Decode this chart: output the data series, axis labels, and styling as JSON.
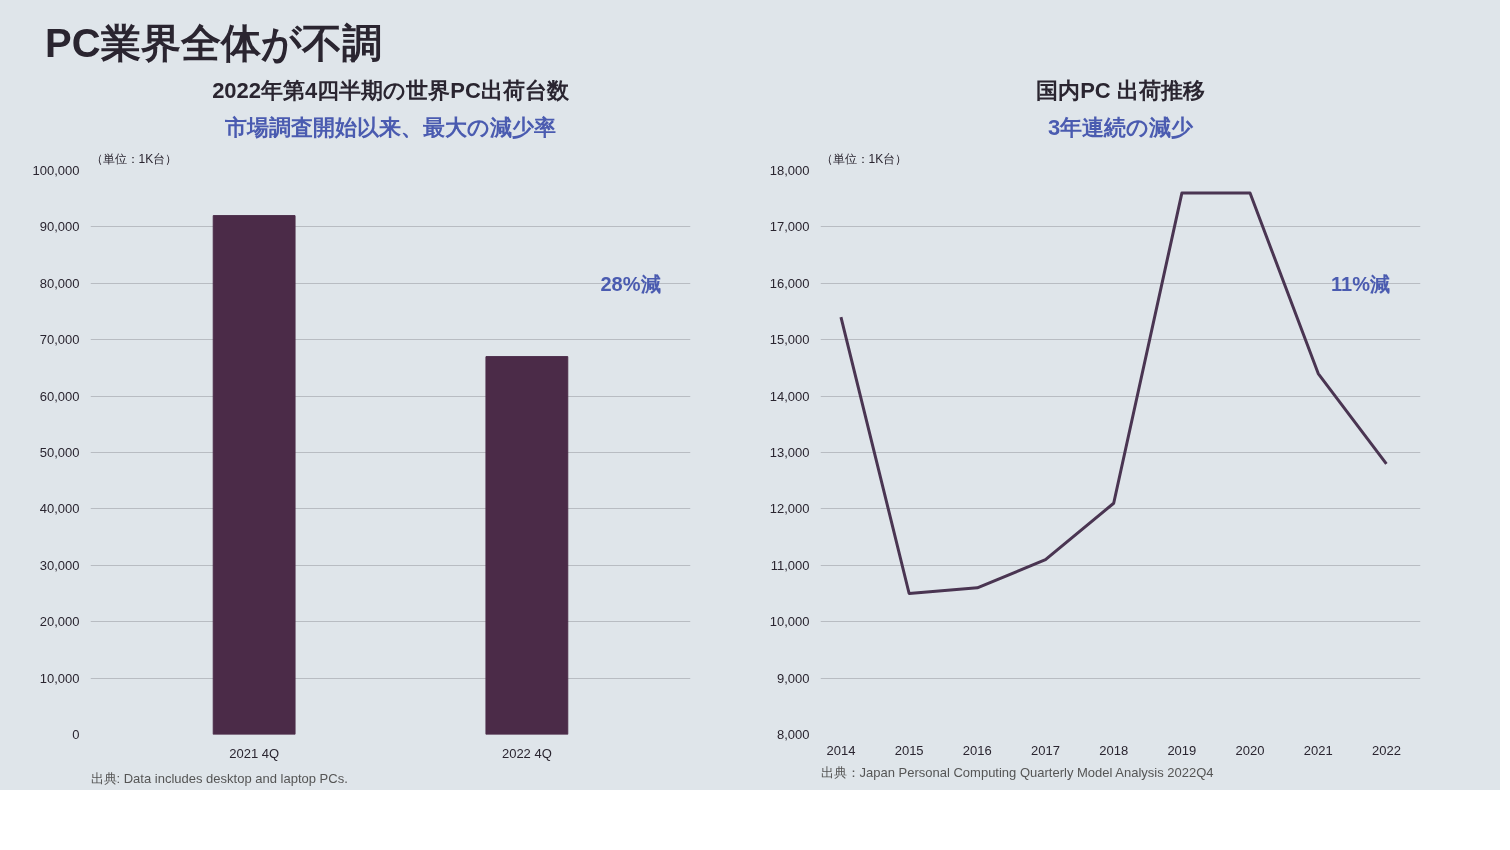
{
  "chart_data": [
    {
      "type": "other",
      "title": "PC業界全体が不調"
    },
    {
      "type": "bar",
      "title": "2022年第4四半期の世界PC出荷台数",
      "subtitle": "市場調査開始以来、最大の減少率",
      "ylabel": "（単位：1K台）",
      "categories": [
        "2021 4Q",
        "2022 4Q"
      ],
      "values": [
        92000,
        67000
      ],
      "color": "#4b2b48",
      "ylim": [
        0,
        100000
      ],
      "yticks": [
        {
          "value": 0,
          "label": "0"
        },
        {
          "value": 10000,
          "label": "10,000"
        },
        {
          "value": 20000,
          "label": "20,000"
        },
        {
          "value": 30000,
          "label": "30,000"
        },
        {
          "value": 40000,
          "label": "40,000"
        },
        {
          "value": 50000,
          "label": "50,000"
        },
        {
          "value": 60000,
          "label": "60,000"
        },
        {
          "value": 70000,
          "label": "70,000"
        },
        {
          "value": 80000,
          "label": "80,000"
        },
        {
          "value": 90000,
          "label": "90,000"
        },
        {
          "value": 100000,
          "label": "100,000"
        }
      ],
      "grid": "y",
      "annotations": [
        "28%減",
        "出典: Data includes desktop and laptop PCs."
      ]
    },
    {
      "type": "line",
      "title": "国内PC 出荷推移",
      "subtitle": "3年連続の減少",
      "ylabel": "（単位：1K台）",
      "x": [
        2014,
        2015,
        2016,
        2017,
        2018,
        2019,
        2020,
        2021,
        2022
      ],
      "series": [
        {
          "color": "#4a3552",
          "values": [
            15400,
            10500,
            10600,
            11100,
            12100,
            17600,
            17600,
            14400,
            12800
          ]
        }
      ],
      "xlim": [
        2013.7,
        2022.5
      ],
      "xticks": [
        2014,
        2015,
        2016,
        2017,
        2018,
        2019,
        2020,
        2021,
        2022
      ],
      "ylim": [
        8000,
        18000
      ],
      "yticks": [
        {
          "value": 8000,
          "label": "8,000"
        },
        {
          "value": 9000,
          "label": "9,000"
        },
        {
          "value": 10000,
          "label": "10,000"
        },
        {
          "value": 11000,
          "label": "11,000"
        },
        {
          "value": 12000,
          "label": "12,000"
        },
        {
          "value": 13000,
          "label": "13,000"
        },
        {
          "value": 14000,
          "label": "14,000"
        },
        {
          "value": 15000,
          "label": "15,000"
        },
        {
          "value": 16000,
          "label": "16,000"
        },
        {
          "value": 17000,
          "label": "17,000"
        },
        {
          "value": 18000,
          "label": "18,000"
        }
      ],
      "grid": "y",
      "marker": "none",
      "line_style": "solid",
      "annotations": [
        "11%減",
        "出典：Japan Personal Computing Quarterly Model Analysis 2022Q4"
      ]
    }
  ]
}
